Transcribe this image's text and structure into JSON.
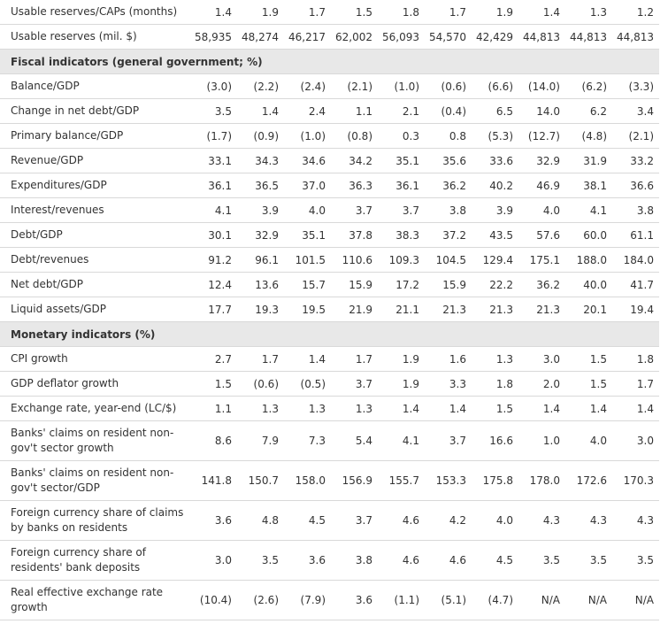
{
  "table": {
    "rows": [
      {
        "type": "row",
        "label": "Usable reserves/CAPs (months)",
        "values": [
          "1.4",
          "1.9",
          "1.7",
          "1.5",
          "1.8",
          "1.7",
          "1.9",
          "1.4",
          "1.3",
          "1.2"
        ]
      },
      {
        "type": "row",
        "label": "Usable reserves (mil. $)",
        "values": [
          "58,935",
          "48,274",
          "46,217",
          "62,002",
          "56,093",
          "54,570",
          "42,429",
          "44,813",
          "44,813",
          "44,813"
        ]
      },
      {
        "type": "section",
        "label": "Fiscal indicators (general government; %)"
      },
      {
        "type": "row",
        "label": "Balance/GDP",
        "values": [
          "(3.0)",
          "(2.2)",
          "(2.4)",
          "(2.1)",
          "(1.0)",
          "(0.6)",
          "(6.6)",
          "(14.0)",
          "(6.2)",
          "(3.3)"
        ]
      },
      {
        "type": "row",
        "label": "Change in net debt/GDP",
        "values": [
          "3.5",
          "1.4",
          "2.4",
          "1.1",
          "2.1",
          "(0.4)",
          "6.5",
          "14.0",
          "6.2",
          "3.4"
        ]
      },
      {
        "type": "row",
        "label": "Primary balance/GDP",
        "values": [
          "(1.7)",
          "(0.9)",
          "(1.0)",
          "(0.8)",
          "0.3",
          "0.8",
          "(5.3)",
          "(12.7)",
          "(4.8)",
          "(2.1)"
        ]
      },
      {
        "type": "row",
        "label": "Revenue/GDP",
        "values": [
          "33.1",
          "34.3",
          "34.6",
          "34.2",
          "35.1",
          "35.6",
          "33.6",
          "32.9",
          "31.9",
          "33.2"
        ]
      },
      {
        "type": "row",
        "label": "Expenditures/GDP",
        "values": [
          "36.1",
          "36.5",
          "37.0",
          "36.3",
          "36.1",
          "36.2",
          "40.2",
          "46.9",
          "38.1",
          "36.6"
        ]
      },
      {
        "type": "row",
        "label": "Interest/revenues",
        "values": [
          "4.1",
          "3.9",
          "4.0",
          "3.7",
          "3.7",
          "3.8",
          "3.9",
          "4.0",
          "4.1",
          "3.8"
        ]
      },
      {
        "type": "row",
        "label": "Debt/GDP",
        "values": [
          "30.1",
          "32.9",
          "35.1",
          "37.8",
          "38.3",
          "37.2",
          "43.5",
          "57.6",
          "60.0",
          "61.1"
        ]
      },
      {
        "type": "row",
        "label": "Debt/revenues",
        "values": [
          "91.2",
          "96.1",
          "101.5",
          "110.6",
          "109.3",
          "104.5",
          "129.4",
          "175.1",
          "188.0",
          "184.0"
        ]
      },
      {
        "type": "row",
        "label": "Net debt/GDP",
        "values": [
          "12.4",
          "13.6",
          "15.7",
          "15.9",
          "17.2",
          "15.9",
          "22.2",
          "36.2",
          "40.0",
          "41.7"
        ]
      },
      {
        "type": "row",
        "label": "Liquid assets/GDP",
        "values": [
          "17.7",
          "19.3",
          "19.5",
          "21.9",
          "21.1",
          "21.3",
          "21.3",
          "21.3",
          "20.1",
          "19.4"
        ]
      },
      {
        "type": "section",
        "label": "Monetary indicators (%)"
      },
      {
        "type": "row",
        "label": "CPI growth",
        "values": [
          "2.7",
          "1.7",
          "1.4",
          "1.7",
          "1.9",
          "1.6",
          "1.3",
          "3.0",
          "1.5",
          "1.8"
        ]
      },
      {
        "type": "row",
        "label": "GDP deflator growth",
        "values": [
          "1.5",
          "(0.6)",
          "(0.5)",
          "3.7",
          "1.9",
          "3.3",
          "1.8",
          "2.0",
          "1.5",
          "1.7"
        ]
      },
      {
        "type": "row",
        "label": "Exchange rate, year-end (LC/$)",
        "values": [
          "1.1",
          "1.3",
          "1.3",
          "1.3",
          "1.4",
          "1.4",
          "1.5",
          "1.4",
          "1.4",
          "1.4"
        ]
      },
      {
        "type": "row2",
        "label": "Banks' claims on resident non-gov't sector growth",
        "values": [
          "8.6",
          "7.9",
          "7.3",
          "5.4",
          "4.1",
          "3.7",
          "16.6",
          "1.0",
          "4.0",
          "3.0"
        ]
      },
      {
        "type": "row2",
        "label": "Banks' claims on resident non-gov't sector/GDP",
        "values": [
          "141.8",
          "150.7",
          "158.0",
          "156.9",
          "155.7",
          "153.3",
          "175.8",
          "178.0",
          "172.6",
          "170.3"
        ]
      },
      {
        "type": "row2",
        "label": "Foreign currency share of claims by banks on residents",
        "values": [
          "3.6",
          "4.8",
          "4.5",
          "3.7",
          "4.6",
          "4.2",
          "4.0",
          "4.3",
          "4.3",
          "4.3"
        ]
      },
      {
        "type": "row2",
        "label": "Foreign currency share of residents' bank deposits",
        "values": [
          "3.0",
          "3.5",
          "3.6",
          "3.8",
          "4.6",
          "4.6",
          "4.5",
          "3.5",
          "3.5",
          "3.5"
        ]
      },
      {
        "type": "row2",
        "label": "Real effective exchange rate growth",
        "values": [
          "(10.4)",
          "(2.6)",
          "(7.9)",
          "3.6",
          "(1.1)",
          "(5.1)",
          "(4.7)",
          "N/A",
          "N/A",
          "N/A"
        ]
      }
    ]
  }
}
